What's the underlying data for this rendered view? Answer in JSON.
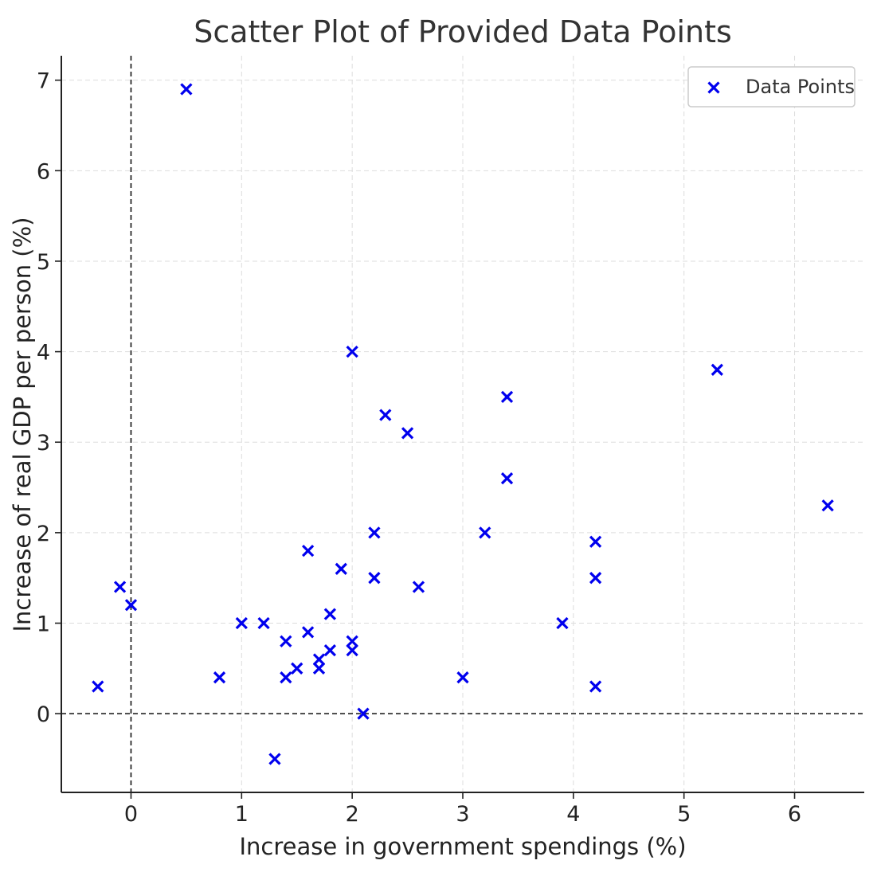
{
  "chart_data": {
    "type": "scatter",
    "title": "Scatter Plot of Provided Data Points",
    "xlabel": "Increase in government spendings (%)",
    "ylabel": "Increase of real GDP per person (%)",
    "xlim": [
      -0.63,
      6.63
    ],
    "ylim": [
      -0.87,
      7.27
    ],
    "xticks": [
      0,
      1,
      2,
      3,
      4,
      5,
      6
    ],
    "yticks": [
      0,
      1,
      2,
      3,
      4,
      5,
      6,
      7
    ],
    "grid": true,
    "reference_lines": {
      "x": 0,
      "y": 0
    },
    "legend": {
      "position": "top-right"
    },
    "series": [
      {
        "name": "Data Points",
        "marker": "x",
        "color": "#0000ee",
        "points": [
          {
            "x": -0.3,
            "y": 0.3
          },
          {
            "x": -0.1,
            "y": 1.4
          },
          {
            "x": 0.0,
            "y": 1.2
          },
          {
            "x": 0.5,
            "y": 6.9
          },
          {
            "x": 0.8,
            "y": 0.4
          },
          {
            "x": 1.0,
            "y": 1.0
          },
          {
            "x": 1.2,
            "y": 1.0
          },
          {
            "x": 1.3,
            "y": -0.5
          },
          {
            "x": 1.4,
            "y": 0.8
          },
          {
            "x": 1.4,
            "y": 0.4
          },
          {
            "x": 1.5,
            "y": 0.5
          },
          {
            "x": 1.6,
            "y": 1.8
          },
          {
            "x": 1.6,
            "y": 0.9
          },
          {
            "x": 1.7,
            "y": 0.6
          },
          {
            "x": 1.7,
            "y": 0.5
          },
          {
            "x": 1.8,
            "y": 1.1
          },
          {
            "x": 1.8,
            "y": 0.7
          },
          {
            "x": 1.9,
            "y": 1.6
          },
          {
            "x": 2.0,
            "y": 4.0
          },
          {
            "x": 2.0,
            "y": 0.8
          },
          {
            "x": 2.0,
            "y": 0.7
          },
          {
            "x": 2.1,
            "y": 0.0
          },
          {
            "x": 2.2,
            "y": 2.0
          },
          {
            "x": 2.2,
            "y": 1.5
          },
          {
            "x": 2.3,
            "y": 3.3
          },
          {
            "x": 2.5,
            "y": 3.1
          },
          {
            "x": 2.6,
            "y": 1.4
          },
          {
            "x": 3.0,
            "y": 0.4
          },
          {
            "x": 3.2,
            "y": 2.0
          },
          {
            "x": 3.4,
            "y": 3.5
          },
          {
            "x": 3.4,
            "y": 2.6
          },
          {
            "x": 3.9,
            "y": 1.0
          },
          {
            "x": 4.2,
            "y": 1.9
          },
          {
            "x": 4.2,
            "y": 1.5
          },
          {
            "x": 4.2,
            "y": 0.3
          },
          {
            "x": 5.3,
            "y": 3.8
          },
          {
            "x": 6.3,
            "y": 2.3
          }
        ]
      }
    ]
  }
}
